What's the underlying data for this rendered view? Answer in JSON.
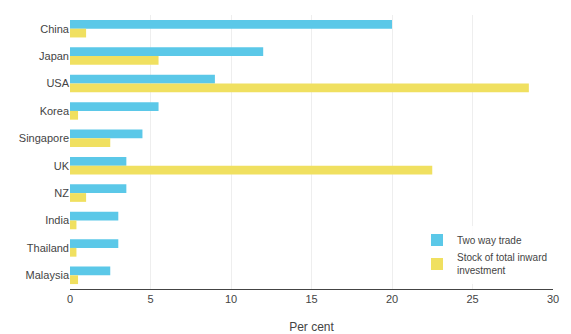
{
  "chart_data": {
    "type": "bar",
    "orientation": "horizontal",
    "categories": [
      "China",
      "Japan",
      "USA",
      "Korea",
      "Singapore",
      "UK",
      "NZ",
      "India",
      "Thailand",
      "Malaysia"
    ],
    "series": [
      {
        "name": "Two way trade",
        "color": "#5BC8E8",
        "values": [
          20.0,
          12.0,
          9.0,
          5.5,
          4.5,
          3.5,
          3.5,
          3.0,
          3.0,
          2.5
        ]
      },
      {
        "name": "Stock of total inward\ninvestment",
        "color": "#F0E060",
        "values": [
          1.0,
          5.5,
          28.5,
          0.5,
          2.5,
          22.5,
          1.0,
          0.4,
          0.4,
          0.5
        ]
      }
    ],
    "xlabel": "Per cent",
    "xlim": [
      0,
      30
    ],
    "xticks": [
      0,
      5,
      10,
      15,
      20,
      25,
      30
    ],
    "grid": true,
    "legend": "lower right"
  }
}
